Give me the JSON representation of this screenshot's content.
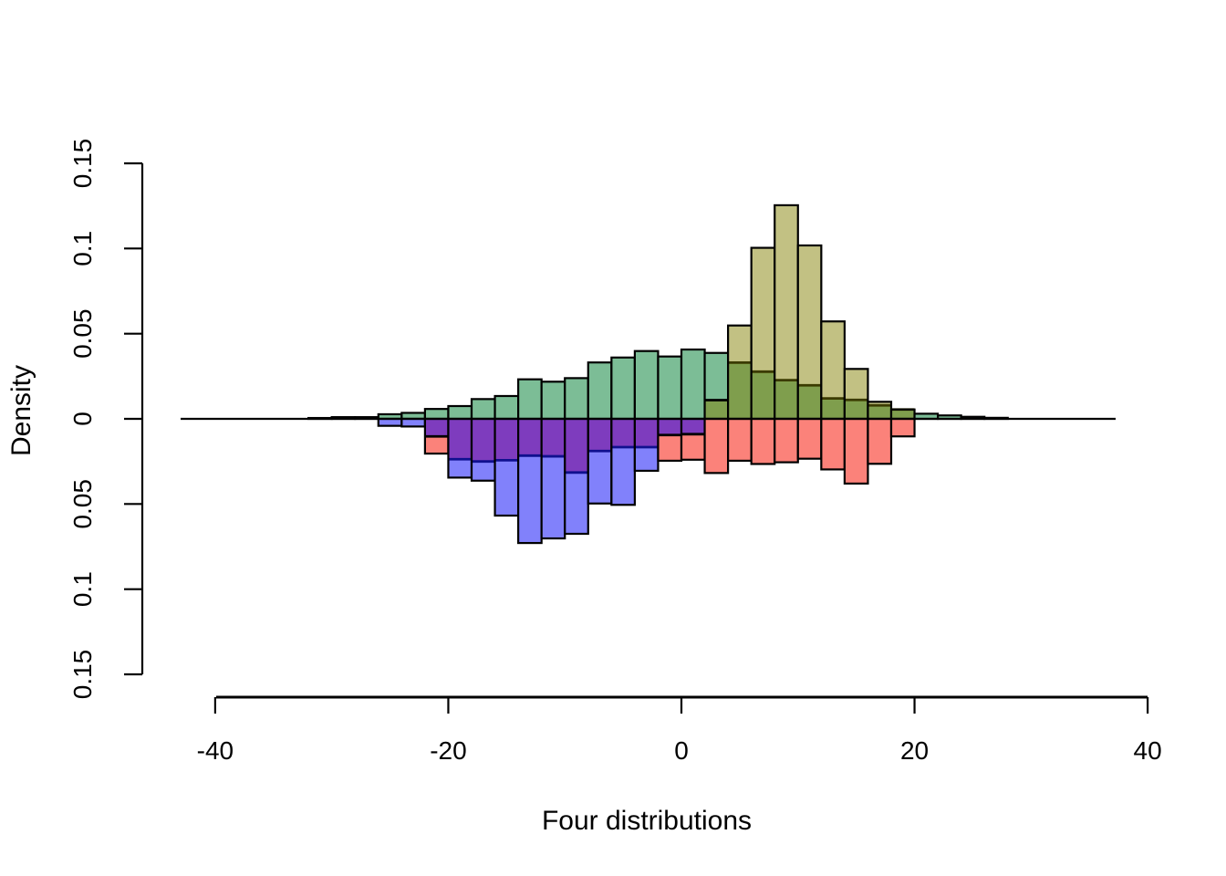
{
  "figure": {
    "background": "#ffffff",
    "border_color": "#000000"
  },
  "chart_data": {
    "type": "bar",
    "subtype": "mirrored-density-histograms",
    "title": "",
    "xlabel": "Four distributions",
    "ylabel": "Density",
    "bin_width": 2,
    "xlim": [
      -43,
      37.5
    ],
    "ylim": [
      -0.15,
      0.15
    ],
    "grid": false,
    "legend": "none",
    "x_axis": {
      "ticks": [
        {
          "value": -40,
          "label": "-40"
        },
        {
          "value": -20,
          "label": "-20"
        },
        {
          "value": 0,
          "label": "0"
        },
        {
          "value": 20,
          "label": "20"
        },
        {
          "value": 40,
          "label": "40"
        }
      ]
    },
    "y_axis": {
      "ticks": [
        {
          "value": 0.15,
          "label": "0.15"
        },
        {
          "value": 0.1,
          "label": "0.1"
        },
        {
          "value": 0.05,
          "label": "0.05"
        },
        {
          "value": 0,
          "label": "0"
        },
        {
          "value": -0.05,
          "label": "0.05"
        },
        {
          "value": -0.1,
          "label": "0.1"
        },
        {
          "value": -0.15,
          "label": "0.15"
        }
      ]
    },
    "palette": {
      "green": "#7CBD96",
      "khaki": "#C2C183",
      "green_khaki_overlap": "#7F9E4D",
      "blue": "#8181FB",
      "red": "#FB827A",
      "blue_red_overlap": "#7E3CBE",
      "navy_divider": "#10108F",
      "olive_divider": "#3B3B00",
      "bar_border": "#000000"
    },
    "series": [
      {
        "name": "green",
        "direction": "up",
        "color_key": "green",
        "bin_start": -32,
        "densities": [
          0.0005,
          0.001,
          0.001,
          0.0027,
          0.0035,
          0.0058,
          0.0075,
          0.0116,
          0.0134,
          0.0232,
          0.0218,
          0.0239,
          0.0331,
          0.036,
          0.0398,
          0.0366,
          0.0407,
          0.0387,
          0.033,
          0.0277,
          0.0227,
          0.0197,
          0.012,
          0.0111,
          0.0079,
          0.0055,
          0.003,
          0.002,
          0.0012,
          0.0006
        ]
      },
      {
        "name": "khaki",
        "direction": "up",
        "color_key": "khaki",
        "bin_start": 2,
        "densities": [
          0.011,
          0.0548,
          0.1004,
          0.1254,
          0.1018,
          0.0572,
          0.0293,
          0.01,
          0.0055
        ]
      },
      {
        "name": "blue",
        "direction": "down",
        "color_key": "blue",
        "bin_start": -26,
        "densities": [
          0.0041,
          0.0045,
          0.0103,
          0.0345,
          0.0363,
          0.0568,
          0.0729,
          0.0702,
          0.0675,
          0.0497,
          0.0505,
          0.0305,
          0.0095,
          0.009
        ]
      },
      {
        "name": "red",
        "direction": "down",
        "color_key": "red",
        "bin_start": -22,
        "densities": [
          0.0204,
          0.0237,
          0.025,
          0.0243,
          0.0216,
          0.022,
          0.0315,
          0.0189,
          0.0166,
          0.0166,
          0.0246,
          0.024,
          0.0318,
          0.0246,
          0.0265,
          0.0255,
          0.0234,
          0.0297,
          0.038,
          0.0264,
          0.0103
        ]
      }
    ]
  }
}
